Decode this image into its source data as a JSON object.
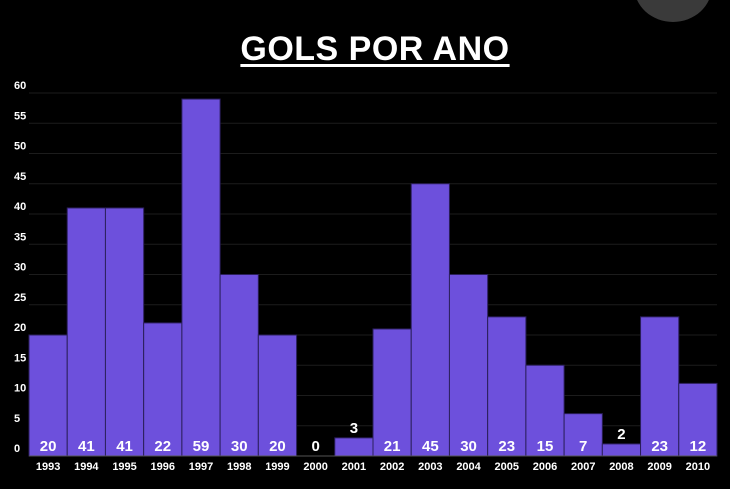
{
  "chart_data": {
    "type": "bar",
    "title": "GOLS POR ANO",
    "categories": [
      "1993",
      "1994",
      "1995",
      "1996",
      "1997",
      "1998",
      "1999",
      "2000",
      "2001",
      "2002",
      "2003",
      "2004",
      "2005",
      "2006",
      "2007",
      "2008",
      "2009",
      "2010"
    ],
    "values": [
      20,
      41,
      41,
      22,
      59,
      30,
      20,
      0,
      3,
      21,
      45,
      30,
      23,
      15,
      7,
      2,
      23,
      12
    ],
    "yticks": [
      "0",
      "5",
      "10",
      "15",
      "20",
      "25",
      "30",
      "35",
      "40",
      "45",
      "50",
      "55",
      "60"
    ],
    "ylim": [
      0,
      60
    ],
    "grid": true,
    "bar_color": "#6d50dc",
    "background": "#000000"
  }
}
